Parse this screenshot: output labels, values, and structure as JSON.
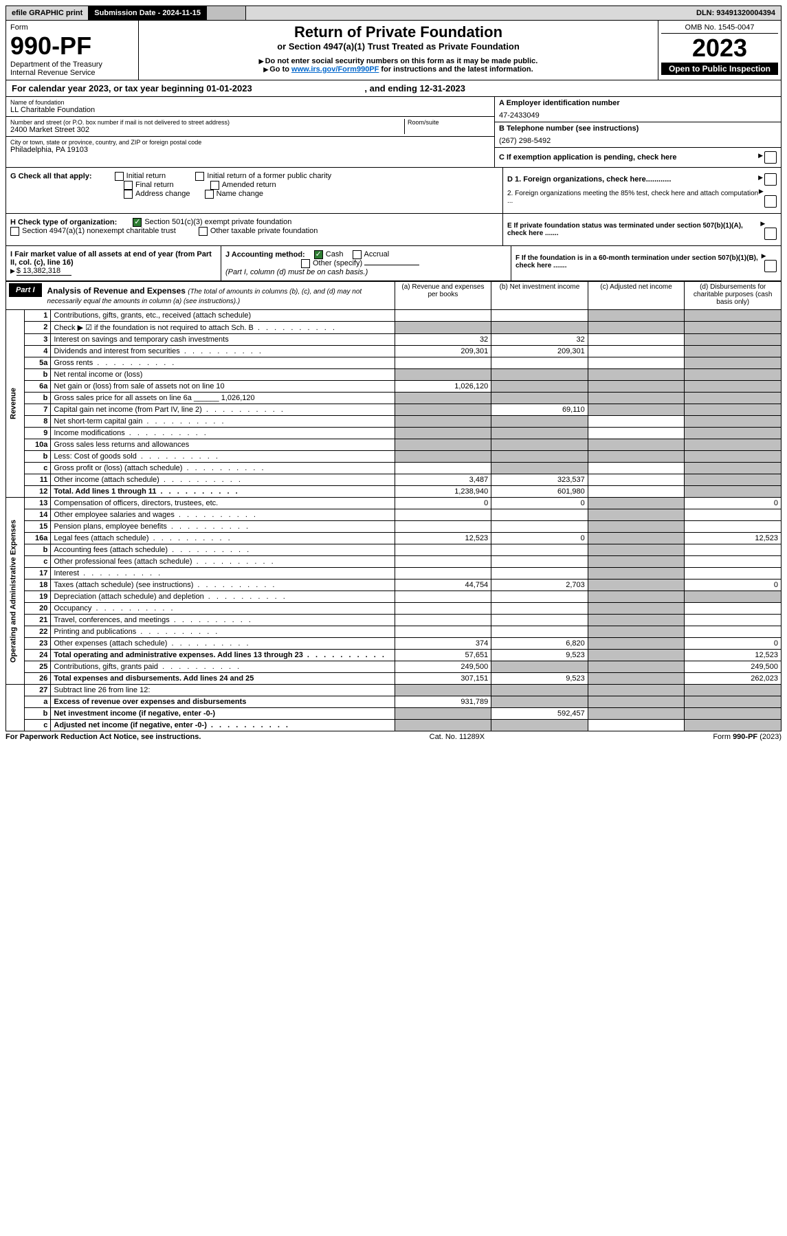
{
  "topbar": {
    "efile": "efile GRAPHIC print",
    "submission": "Submission Date - 2024-11-15",
    "pdf": "",
    "dln": "DLN: 93491320004394"
  },
  "header": {
    "form_label": "Form",
    "form_no": "990-PF",
    "dept": "Department of the Treasury",
    "irs": "Internal Revenue Service",
    "title": "Return of Private Foundation",
    "subtitle": "or Section 4947(a)(1) Trust Treated as Private Foundation",
    "warn1": "Do not enter social security numbers on this form as it may be made public.",
    "warn2_prefix": "Go to ",
    "warn2_link": "www.irs.gov/Form990PF",
    "warn2_suffix": " for instructions and the latest information.",
    "omb": "OMB No. 1545-0047",
    "year": "2023",
    "open": "Open to Public Inspection"
  },
  "calyear": {
    "text": "For calendar year 2023, or tax year beginning 01-01-2023",
    "ending": ", and ending 12-31-2023"
  },
  "info": {
    "name_label": "Name of foundation",
    "name": "LL Charitable Foundation",
    "addr_label": "Number and street (or P.O. box number if mail is not delivered to street address)",
    "addr": "2400 Market Street 302",
    "room_label": "Room/suite",
    "city_label": "City or town, state or province, country, and ZIP or foreign postal code",
    "city": "Philadelphia, PA  19103",
    "a_label": "A Employer identification number",
    "a_val": "47-2433049",
    "b_label": "B Telephone number (see instructions)",
    "b_val": "(267) 298-5492",
    "c_label": "C If exemption application is pending, check here"
  },
  "checks": {
    "g_label": "G Check all that apply:",
    "g_opts": [
      "Initial return",
      "Initial return of a former public charity",
      "Final return",
      "Amended return",
      "Address change",
      "Name change"
    ],
    "h_label": "H Check type of organization:",
    "h_opt1": "Section 501(c)(3) exempt private foundation",
    "h_opt2": "Section 4947(a)(1) nonexempt charitable trust",
    "h_opt3": "Other taxable private foundation",
    "d1": "D 1. Foreign organizations, check here............",
    "d2": "2. Foreign organizations meeting the 85% test, check here and attach computation ...",
    "e": "E  If private foundation status was terminated under section 507(b)(1)(A), check here .......",
    "i_label": "I Fair market value of all assets at end of year (from Part II, col. (c), line 16)",
    "i_val": "$  13,382,318",
    "j_label": "J Accounting method:",
    "j_cash": "Cash",
    "j_accrual": "Accrual",
    "j_other": "Other (specify)",
    "j_note": "(Part I, column (d) must be on cash basis.)",
    "f": "F  If the foundation is in a 60-month termination under section 507(b)(1)(B), check here ......."
  },
  "part1": {
    "label": "Part I",
    "title": "Analysis of Revenue and Expenses",
    "title_note": "(The total of amounts in columns (b), (c), and (d) may not necessarily equal the amounts in column (a) (see instructions).)",
    "cols": {
      "a": "(a)   Revenue and expenses per books",
      "b": "(b)   Net investment income",
      "c": "(c)   Adjusted net income",
      "d": "(d)  Disbursements for charitable purposes (cash basis only)"
    }
  },
  "rows": [
    {
      "n": "1",
      "d": "Contributions, gifts, grants, etc., received (attach schedule)",
      "a": "",
      "b": "",
      "c": "g",
      "dd": "g",
      "sec": "rev"
    },
    {
      "n": "2",
      "d": "Check ▶ ☑ if the foundation is not required to attach Sch. B",
      "a": "g",
      "b": "g",
      "c": "g",
      "dd": "g",
      "sec": "rev",
      "dots": true
    },
    {
      "n": "3",
      "d": "Interest on savings and temporary cash investments",
      "a": "32",
      "b": "32",
      "c": "",
      "dd": "g",
      "sec": "rev"
    },
    {
      "n": "4",
      "d": "Dividends and interest from securities",
      "a": "209,301",
      "b": "209,301",
      "c": "",
      "dd": "g",
      "sec": "rev",
      "dots": true
    },
    {
      "n": "5a",
      "d": "Gross rents",
      "a": "",
      "b": "",
      "c": "",
      "dd": "g",
      "sec": "rev",
      "dots": true
    },
    {
      "n": "b",
      "d": "Net rental income or (loss)",
      "a": "g",
      "b": "g",
      "c": "g",
      "dd": "g",
      "sec": "rev",
      "inset": true
    },
    {
      "n": "6a",
      "d": "Net gain or (loss) from sale of assets not on line 10",
      "a": "1,026,120",
      "b": "g",
      "c": "g",
      "dd": "g",
      "sec": "rev"
    },
    {
      "n": "b",
      "d": "Gross sales price for all assets on line 6a ______ 1,026,120",
      "a": "g",
      "b": "g",
      "c": "g",
      "dd": "g",
      "sec": "rev"
    },
    {
      "n": "7",
      "d": "Capital gain net income (from Part IV, line 2)",
      "a": "g",
      "b": "69,110",
      "c": "g",
      "dd": "g",
      "sec": "rev",
      "dots": true
    },
    {
      "n": "8",
      "d": "Net short-term capital gain",
      "a": "g",
      "b": "g",
      "c": "",
      "dd": "g",
      "sec": "rev",
      "dots": true
    },
    {
      "n": "9",
      "d": "Income modifications",
      "a": "g",
      "b": "g",
      "c": "",
      "dd": "g",
      "sec": "rev",
      "dots": true
    },
    {
      "n": "10a",
      "d": "Gross sales less returns and allowances",
      "a": "g",
      "b": "g",
      "c": "g",
      "dd": "g",
      "sec": "rev",
      "inset": true
    },
    {
      "n": "b",
      "d": "Less: Cost of goods sold",
      "a": "g",
      "b": "g",
      "c": "g",
      "dd": "g",
      "sec": "rev",
      "dots": true,
      "inset": true
    },
    {
      "n": "c",
      "d": "Gross profit or (loss) (attach schedule)",
      "a": "",
      "b": "g",
      "c": "",
      "dd": "g",
      "sec": "rev",
      "dots": true
    },
    {
      "n": "11",
      "d": "Other income (attach schedule)",
      "a": "3,487",
      "b": "323,537",
      "c": "",
      "dd": "g",
      "sec": "rev",
      "dots": true
    },
    {
      "n": "12",
      "d": "Total. Add lines 1 through 11",
      "a": "1,238,940",
      "b": "601,980",
      "c": "",
      "dd": "g",
      "sec": "rev",
      "bold": true,
      "dots": true
    },
    {
      "n": "13",
      "d": "Compensation of officers, directors, trustees, etc.",
      "a": "0",
      "b": "0",
      "c": "g",
      "dd": "0",
      "sec": "exp"
    },
    {
      "n": "14",
      "d": "Other employee salaries and wages",
      "a": "",
      "b": "",
      "c": "g",
      "dd": "",
      "sec": "exp",
      "dots": true
    },
    {
      "n": "15",
      "d": "Pension plans, employee benefits",
      "a": "",
      "b": "",
      "c": "g",
      "dd": "",
      "sec": "exp",
      "dots": true
    },
    {
      "n": "16a",
      "d": "Legal fees (attach schedule)",
      "a": "12,523",
      "b": "0",
      "c": "g",
      "dd": "12,523",
      "sec": "exp",
      "dots": true
    },
    {
      "n": "b",
      "d": "Accounting fees (attach schedule)",
      "a": "",
      "b": "",
      "c": "g",
      "dd": "",
      "sec": "exp",
      "dots": true
    },
    {
      "n": "c",
      "d": "Other professional fees (attach schedule)",
      "a": "",
      "b": "",
      "c": "g",
      "dd": "",
      "sec": "exp",
      "dots": true
    },
    {
      "n": "17",
      "d": "Interest",
      "a": "",
      "b": "",
      "c": "g",
      "dd": "",
      "sec": "exp",
      "dots": true
    },
    {
      "n": "18",
      "d": "Taxes (attach schedule) (see instructions)",
      "a": "44,754",
      "b": "2,703",
      "c": "g",
      "dd": "0",
      "sec": "exp",
      "dots": true
    },
    {
      "n": "19",
      "d": "Depreciation (attach schedule) and depletion",
      "a": "",
      "b": "",
      "c": "g",
      "dd": "g",
      "sec": "exp",
      "dots": true
    },
    {
      "n": "20",
      "d": "Occupancy",
      "a": "",
      "b": "",
      "c": "g",
      "dd": "",
      "sec": "exp",
      "dots": true
    },
    {
      "n": "21",
      "d": "Travel, conferences, and meetings",
      "a": "",
      "b": "",
      "c": "g",
      "dd": "",
      "sec": "exp",
      "dots": true
    },
    {
      "n": "22",
      "d": "Printing and publications",
      "a": "",
      "b": "",
      "c": "g",
      "dd": "",
      "sec": "exp",
      "dots": true
    },
    {
      "n": "23",
      "d": "Other expenses (attach schedule)",
      "a": "374",
      "b": "6,820",
      "c": "g",
      "dd": "0",
      "sec": "exp",
      "dots": true
    },
    {
      "n": "24",
      "d": "Total operating and administrative expenses. Add lines 13 through 23",
      "a": "57,651",
      "b": "9,523",
      "c": "g",
      "dd": "12,523",
      "sec": "exp",
      "bold": true,
      "dots": true
    },
    {
      "n": "25",
      "d": "Contributions, gifts, grants paid",
      "a": "249,500",
      "b": "g",
      "c": "g",
      "dd": "249,500",
      "sec": "exp",
      "dots": true
    },
    {
      "n": "26",
      "d": "Total expenses and disbursements. Add lines 24 and 25",
      "a": "307,151",
      "b": "9,523",
      "c": "g",
      "dd": "262,023",
      "sec": "exp",
      "bold": true
    },
    {
      "n": "27",
      "d": "Subtract line 26 from line 12:",
      "a": "g",
      "b": "g",
      "c": "g",
      "dd": "g",
      "sec": "net"
    },
    {
      "n": "a",
      "d": "Excess of revenue over expenses and disbursements",
      "a": "931,789",
      "b": "g",
      "c": "g",
      "dd": "g",
      "sec": "net",
      "bold": true
    },
    {
      "n": "b",
      "d": "Net investment income (if negative, enter -0-)",
      "a": "g",
      "b": "592,457",
      "c": "g",
      "dd": "g",
      "sec": "net",
      "bold": true
    },
    {
      "n": "c",
      "d": "Adjusted net income (if negative, enter -0-)",
      "a": "g",
      "b": "g",
      "c": "",
      "dd": "g",
      "sec": "net",
      "bold": true,
      "dots": true
    }
  ],
  "vert": {
    "rev": "Revenue",
    "exp": "Operating and Administrative Expenses"
  },
  "footer": {
    "left": "For Paperwork Reduction Act Notice, see instructions.",
    "mid": "Cat. No. 11289X",
    "right": "Form 990-PF (2023)"
  }
}
